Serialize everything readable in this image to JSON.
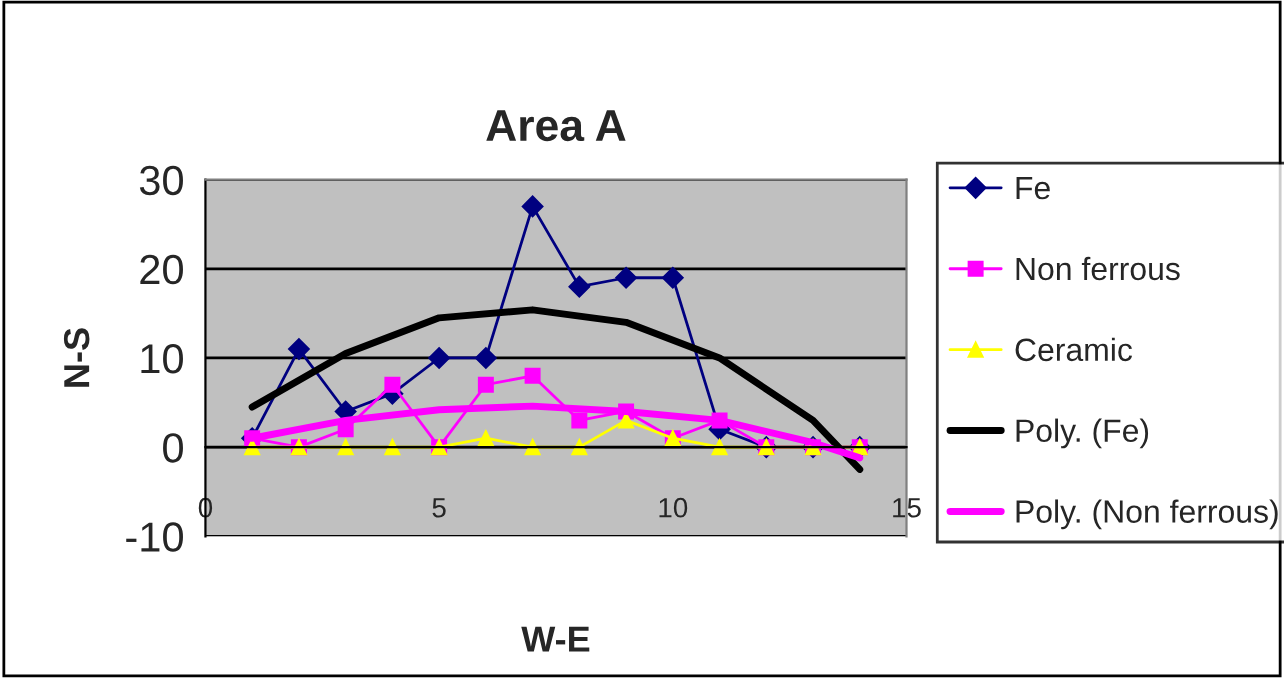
{
  "chart_data": {
    "type": "line",
    "title": "Area A",
    "xlabel": "W-E",
    "ylabel": "N-S",
    "xlim": [
      0,
      15
    ],
    "xticks": [
      0,
      5,
      10,
      15
    ],
    "ylim": [
      -10,
      30
    ],
    "yticks": [
      -10,
      0,
      10,
      20,
      30
    ],
    "grid": "y",
    "legend": "right",
    "x": [
      1,
      2,
      3,
      4,
      5,
      6,
      7,
      8,
      9,
      10,
      11,
      12,
      13,
      14
    ],
    "series": [
      {
        "name": "Fe",
        "color": "#000080",
        "marker": "diamond",
        "values": [
          1,
          11,
          4,
          6,
          10,
          10,
          27,
          18,
          19,
          19,
          2,
          0,
          0,
          0
        ]
      },
      {
        "name": "Non ferrous",
        "color": "#ff00ff",
        "marker": "square",
        "values": [
          1,
          0,
          2,
          7,
          0,
          7,
          8,
          3,
          4,
          1,
          3,
          0,
          0,
          0
        ]
      },
      {
        "name": "Ceramic",
        "color": "#ffff00",
        "marker": "triangle",
        "values": [
          0,
          0,
          0,
          0,
          0,
          1,
          0,
          0,
          3,
          1,
          0,
          0,
          0,
          0
        ]
      },
      {
        "name": "Poly. (Fe)",
        "color": "#000000",
        "marker": "none",
        "x": [
          1,
          3,
          5,
          7,
          9,
          11,
          13,
          14
        ],
        "values": [
          4.5,
          10.5,
          14.5,
          15.4,
          14,
          10,
          3,
          -2.5
        ]
      },
      {
        "name": "Poly. (Non ferrous)",
        "color": "#ff00ff",
        "marker": "none",
        "x": [
          1,
          3,
          5,
          7,
          9,
          11,
          13,
          14
        ],
        "values": [
          1,
          3,
          4.2,
          4.6,
          4,
          3,
          0.5,
          -1.2
        ]
      }
    ]
  }
}
